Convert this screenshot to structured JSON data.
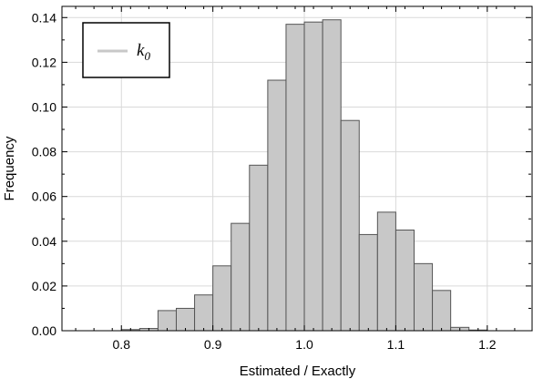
{
  "chart_data": {
    "type": "bar",
    "xlabel": "Estimated / Exactly",
    "ylabel": "Frequency",
    "xlim": [
      0.735,
      1.25
    ],
    "ylim": [
      0,
      0.145
    ],
    "grid": true,
    "legend_position": "top-left",
    "xticks": [
      0.8,
      0.9,
      1.0,
      1.1,
      1.2
    ],
    "xtick_labels": [
      "0.8",
      "0.9",
      "1.0",
      "1.1",
      "1.2"
    ],
    "yticks": [
      0,
      0.02,
      0.04,
      0.06,
      0.08,
      0.1,
      0.12,
      0.14
    ],
    "ytick_labels": [
      "0.00",
      "0.02",
      "0.04",
      "0.06",
      "0.08",
      "0.10",
      "0.12",
      "0.14"
    ],
    "bin_width": 0.02,
    "series": [
      {
        "name": "k",
        "name_subscript": "0",
        "color": "#c8c8c8",
        "edge_color": "#555555",
        "bin_starts": [
          0.8,
          0.82,
          0.84,
          0.86,
          0.88,
          0.9,
          0.92,
          0.94,
          0.96,
          0.98,
          1.0,
          1.02,
          1.04,
          1.06,
          1.08,
          1.1,
          1.12,
          1.14,
          1.16,
          1.18
        ],
        "values": [
          0.0005,
          0.001,
          0.009,
          0.01,
          0.016,
          0.029,
          0.048,
          0.074,
          0.112,
          0.137,
          0.138,
          0.139,
          0.094,
          0.043,
          0.053,
          0.045,
          0.03,
          0.018,
          0.0015,
          0.0003
        ]
      }
    ]
  }
}
